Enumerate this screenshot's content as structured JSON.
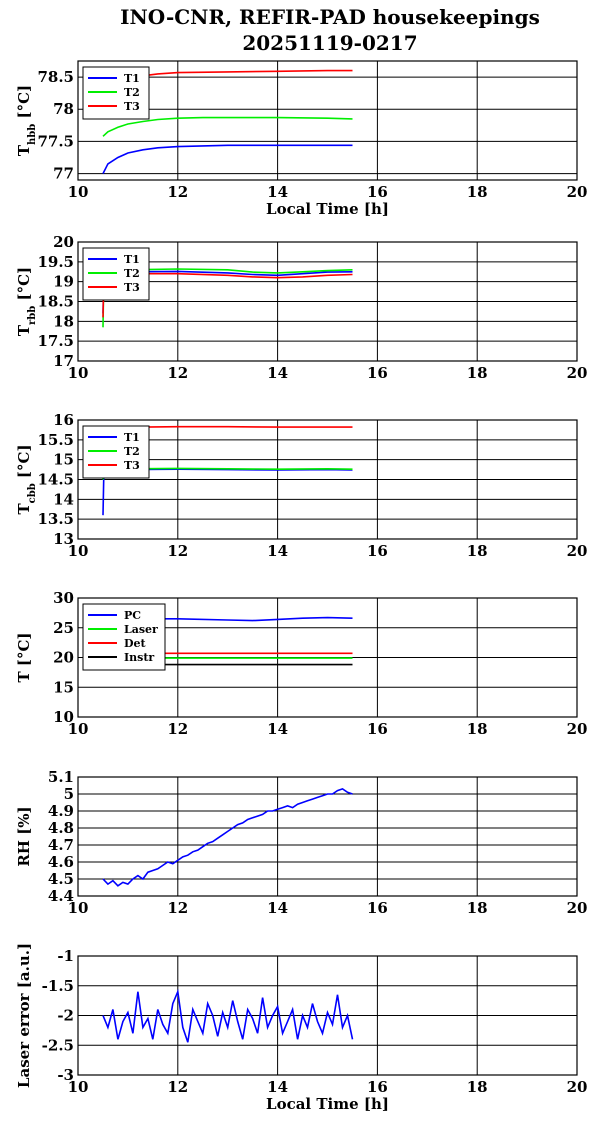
{
  "title_line1": "INO-CNR, REFIR-PAD housekeepings",
  "title_line2": "20251119-0217",
  "colors": {
    "blue": "#0000ff",
    "green": "#00ee00",
    "red": "#ff0000",
    "black": "#000000"
  },
  "chart_data": [
    {
      "type": "line",
      "ylabel": "T",
      "ylabel_sub": "hbb",
      "ylabel_unit": " [°C]",
      "xlabel": "Local Time [h]",
      "xlim": [
        10,
        20
      ],
      "ylim": [
        76.9,
        78.75
      ],
      "xticks": [
        10,
        12,
        14,
        16,
        18,
        20
      ],
      "yticks": [
        77,
        77.5,
        78,
        78.5
      ],
      "ytick_labels": [
        "77",
        "77.5",
        "78",
        "78.5"
      ],
      "grid": true,
      "legend_position": "top-left",
      "series": [
        {
          "name": "T1",
          "color": "#0000ff",
          "x": [
            10.5,
            10.6,
            10.8,
            11.0,
            11.3,
            11.6,
            12.0,
            12.5,
            13.0,
            14.0,
            15.0,
            15.5
          ],
          "y": [
            77.0,
            77.15,
            77.25,
            77.32,
            77.37,
            77.4,
            77.42,
            77.43,
            77.44,
            77.44,
            77.44,
            77.44
          ]
        },
        {
          "name": "T2",
          "color": "#00ee00",
          "x": [
            10.5,
            10.6,
            10.8,
            11.0,
            11.3,
            11.6,
            12.0,
            12.5,
            13.0,
            14.0,
            15.0,
            15.5
          ],
          "y": [
            77.58,
            77.65,
            77.72,
            77.77,
            77.81,
            77.84,
            77.86,
            77.87,
            77.87,
            77.87,
            77.86,
            77.85
          ]
        },
        {
          "name": "T3",
          "color": "#ff0000",
          "x": [
            11.3,
            11.6,
            12.0,
            13.0,
            14.0,
            15.0,
            15.5
          ],
          "y": [
            78.52,
            78.55,
            78.57,
            78.58,
            78.59,
            78.6,
            78.6
          ]
        }
      ]
    },
    {
      "type": "line",
      "ylabel": "T",
      "ylabel_sub": "rbb",
      "ylabel_unit": " [°C]",
      "xlabel": "",
      "xlim": [
        10,
        20
      ],
      "ylim": [
        17,
        20
      ],
      "xticks": [
        10,
        12,
        14,
        16,
        18,
        20
      ],
      "yticks": [
        17,
        17.5,
        18,
        18.5,
        19,
        19.5,
        20
      ],
      "ytick_labels": [
        "17",
        "17.5",
        "18",
        "18.5",
        "19",
        "19.5",
        "20"
      ],
      "grid": true,
      "legend_position": "top-left",
      "series": [
        {
          "name": "T1",
          "color": "#0000ff",
          "x": [
            10.5,
            10.52,
            11.0,
            12.0,
            13.0,
            13.5,
            14.0,
            14.5,
            15.0,
            15.5
          ],
          "y": [
            18.2,
            19.25,
            19.25,
            19.26,
            19.22,
            19.18,
            19.16,
            19.2,
            19.24,
            19.25
          ]
        },
        {
          "name": "T2",
          "color": "#00ee00",
          "x": [
            10.5,
            10.52,
            11.0,
            12.0,
            13.0,
            13.5,
            14.0,
            14.5,
            15.0,
            15.5
          ],
          "y": [
            17.85,
            19.3,
            19.3,
            19.32,
            19.3,
            19.24,
            19.22,
            19.25,
            19.28,
            19.3
          ]
        },
        {
          "name": "T3",
          "color": "#ff0000",
          "x": [
            10.5,
            10.52,
            11.0,
            12.0,
            13.0,
            13.5,
            14.0,
            14.5,
            15.0,
            15.5
          ],
          "y": [
            18.1,
            19.2,
            19.2,
            19.2,
            19.16,
            19.12,
            19.1,
            19.12,
            19.16,
            19.18
          ]
        }
      ]
    },
    {
      "type": "line",
      "ylabel": "T",
      "ylabel_sub": "cbb",
      "ylabel_unit": " [°C]",
      "xlabel": "",
      "xlim": [
        10,
        20
      ],
      "ylim": [
        13,
        16
      ],
      "xticks": [
        10,
        12,
        14,
        16,
        18,
        20
      ],
      "yticks": [
        13,
        13.5,
        14,
        14.5,
        15,
        15.5,
        16
      ],
      "ytick_labels": [
        "13",
        "13.5",
        "14",
        "14.5",
        "15",
        "15.5",
        "16"
      ],
      "grid": true,
      "legend_position": "top-left",
      "series": [
        {
          "name": "T1",
          "color": "#0000ff",
          "x": [
            10.5,
            10.52,
            11.0,
            12.0,
            13.0,
            14.0,
            15.0,
            15.5
          ],
          "y": [
            13.6,
            14.75,
            14.75,
            14.76,
            14.75,
            14.74,
            14.75,
            14.74
          ]
        },
        {
          "name": "T2",
          "color": "#00ee00",
          "x": [
            10.5,
            10.52,
            11.0,
            12.0,
            13.0,
            14.0,
            15.0,
            15.5
          ],
          "y": [
            14.5,
            14.77,
            14.77,
            14.78,
            14.77,
            14.76,
            14.77,
            14.76
          ]
        },
        {
          "name": "T3",
          "color": "#ff0000",
          "x": [
            11.3,
            12.0,
            13.0,
            14.0,
            15.0,
            15.5
          ],
          "y": [
            15.82,
            15.83,
            15.83,
            15.82,
            15.82,
            15.82
          ]
        }
      ]
    },
    {
      "type": "line",
      "ylabel": "T [°C]",
      "ylabel_sub": "",
      "ylabel_unit": "",
      "xlabel": "",
      "xlim": [
        10,
        20
      ],
      "ylim": [
        10,
        30
      ],
      "xticks": [
        10,
        12,
        14,
        16,
        18,
        20
      ],
      "yticks": [
        10,
        15,
        20,
        25,
        30
      ],
      "ytick_labels": [
        "10",
        "15",
        "20",
        "25",
        "30"
      ],
      "grid": true,
      "legend_position": "top-left",
      "series": [
        {
          "name": "PC",
          "color": "#0000ff",
          "x": [
            11.5,
            12.0,
            13.0,
            13.5,
            14.0,
            14.5,
            15.0,
            15.5
          ],
          "y": [
            26.5,
            26.5,
            26.3,
            26.2,
            26.4,
            26.6,
            26.7,
            26.6
          ]
        },
        {
          "name": "Laser",
          "color": "#00ee00",
          "x": [
            11.5,
            12.0,
            13.0,
            14.0,
            15.0,
            15.5
          ],
          "y": [
            19.9,
            19.9,
            19.9,
            19.9,
            19.9,
            19.9
          ]
        },
        {
          "name": "Det",
          "color": "#ff0000",
          "x": [
            11.5,
            12.0,
            13.0,
            14.0,
            15.0,
            15.5
          ],
          "y": [
            20.7,
            20.7,
            20.7,
            20.7,
            20.7,
            20.7
          ]
        },
        {
          "name": "Instr",
          "color": "#000000",
          "x": [
            11.5,
            12.0,
            13.0,
            14.0,
            15.0,
            15.5
          ],
          "y": [
            18.8,
            18.8,
            18.8,
            18.8,
            18.8,
            18.8
          ]
        }
      ]
    },
    {
      "type": "line",
      "ylabel": "RH [%]",
      "ylabel_sub": "",
      "ylabel_unit": "",
      "xlabel": "",
      "xlim": [
        10,
        20
      ],
      "ylim": [
        4.4,
        5.1
      ],
      "xticks": [
        10,
        12,
        14,
        16,
        18,
        20
      ],
      "yticks": [
        4.4,
        4.5,
        4.6,
        4.7,
        4.8,
        4.9,
        5,
        5.1
      ],
      "ytick_labels": [
        "4.4",
        "4.5",
        "4.6",
        "4.7",
        "4.8",
        "4.9",
        "5",
        "5.1"
      ],
      "grid": true,
      "legend_position": "none",
      "series": [
        {
          "name": "",
          "color": "#0000ff",
          "x": [
            10.5,
            10.6,
            10.7,
            10.8,
            10.9,
            11.0,
            11.1,
            11.2,
            11.3,
            11.4,
            11.5,
            11.6,
            11.7,
            11.8,
            11.9,
            12.0,
            12.1,
            12.2,
            12.3,
            12.4,
            12.5,
            12.6,
            12.7,
            12.8,
            12.9,
            13.0,
            13.1,
            13.2,
            13.3,
            13.4,
            13.5,
            13.6,
            13.7,
            13.8,
            13.9,
            14.0,
            14.1,
            14.2,
            14.3,
            14.4,
            14.5,
            14.6,
            14.7,
            14.8,
            14.9,
            15.0,
            15.1,
            15.2,
            15.3,
            15.4,
            15.5
          ],
          "y": [
            4.5,
            4.47,
            4.49,
            4.46,
            4.48,
            4.47,
            4.5,
            4.52,
            4.5,
            4.54,
            4.55,
            4.56,
            4.58,
            4.6,
            4.59,
            4.61,
            4.63,
            4.64,
            4.66,
            4.67,
            4.69,
            4.71,
            4.72,
            4.74,
            4.76,
            4.78,
            4.8,
            4.82,
            4.83,
            4.85,
            4.86,
            4.87,
            4.88,
            4.9,
            4.9,
            4.91,
            4.92,
            4.93,
            4.92,
            4.94,
            4.95,
            4.96,
            4.97,
            4.98,
            4.99,
            5.0,
            5.0,
            5.02,
            5.03,
            5.01,
            5.0
          ]
        }
      ]
    },
    {
      "type": "line",
      "ylabel": "Laser error [a.u.]",
      "ylabel_sub": "",
      "ylabel_unit": "",
      "xlabel": "Local Time [h]",
      "xlim": [
        10,
        20
      ],
      "ylim": [
        -3,
        -1
      ],
      "xticks": [
        10,
        12,
        14,
        16,
        18,
        20
      ],
      "yticks": [
        -3,
        -2.5,
        -2,
        -1.5,
        -1
      ],
      "ytick_labels": [
        "-3",
        "-2.5",
        "-2",
        "-1.5",
        "-1"
      ],
      "grid": true,
      "legend_position": "none",
      "series": [
        {
          "name": "",
          "color": "#0000ff",
          "x": [
            10.5,
            10.6,
            10.7,
            10.8,
            10.9,
            11.0,
            11.1,
            11.2,
            11.3,
            11.4,
            11.5,
            11.6,
            11.7,
            11.8,
            11.9,
            12.0,
            12.1,
            12.2,
            12.3,
            12.4,
            12.5,
            12.6,
            12.7,
            12.8,
            12.9,
            13.0,
            13.1,
            13.2,
            13.3,
            13.4,
            13.5,
            13.6,
            13.7,
            13.8,
            13.9,
            14.0,
            14.1,
            14.2,
            14.3,
            14.4,
            14.5,
            14.6,
            14.7,
            14.8,
            14.9,
            15.0,
            15.1,
            15.2,
            15.3,
            15.4,
            15.5
          ],
          "y": [
            -2.0,
            -2.2,
            -1.9,
            -2.4,
            -2.1,
            -1.95,
            -2.3,
            -1.6,
            -2.2,
            -2.05,
            -2.4,
            -1.9,
            -2.15,
            -2.3,
            -1.8,
            -1.6,
            -2.2,
            -2.45,
            -1.9,
            -2.1,
            -2.3,
            -1.8,
            -2.0,
            -2.35,
            -1.95,
            -2.2,
            -1.75,
            -2.1,
            -2.4,
            -1.9,
            -2.05,
            -2.3,
            -1.7,
            -2.2,
            -2.0,
            -1.85,
            -2.3,
            -2.1,
            -1.9,
            -2.4,
            -2.0,
            -2.2,
            -1.8,
            -2.1,
            -2.3,
            -1.95,
            -2.15,
            -1.65,
            -2.2,
            -2.0,
            -2.4
          ]
        }
      ]
    }
  ]
}
